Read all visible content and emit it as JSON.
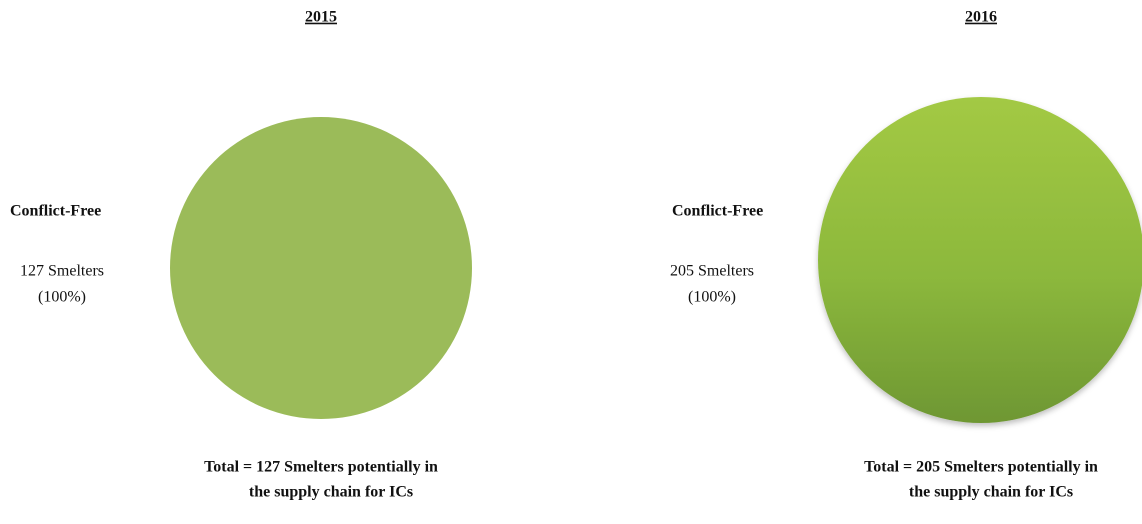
{
  "chart_data": [
    {
      "type": "pie",
      "title": "2015",
      "categories": [
        "Conflict-Free"
      ],
      "values": [
        100
      ],
      "value_labels": [
        "(100%)"
      ],
      "smelters": [
        127
      ],
      "smelter_labels": [
        "127 Smelters"
      ],
      "colors": [
        "#9bbb59"
      ],
      "gradient": false,
      "note": [
        "Total = 127 Smelters potentially in",
        "the supply chain for ICs"
      ]
    },
    {
      "type": "pie",
      "title": "2016",
      "categories": [
        "Conflict-Free"
      ],
      "values": [
        100
      ],
      "value_labels": [
        "(100%)"
      ],
      "smelters": [
        205
      ],
      "smelter_labels": [
        "205 Smelters"
      ],
      "colors": [
        "#8cb83c"
      ],
      "gradient": true,
      "note": [
        "Total = 205 Smelters potentially in",
        "the supply chain for ICs"
      ]
    }
  ]
}
